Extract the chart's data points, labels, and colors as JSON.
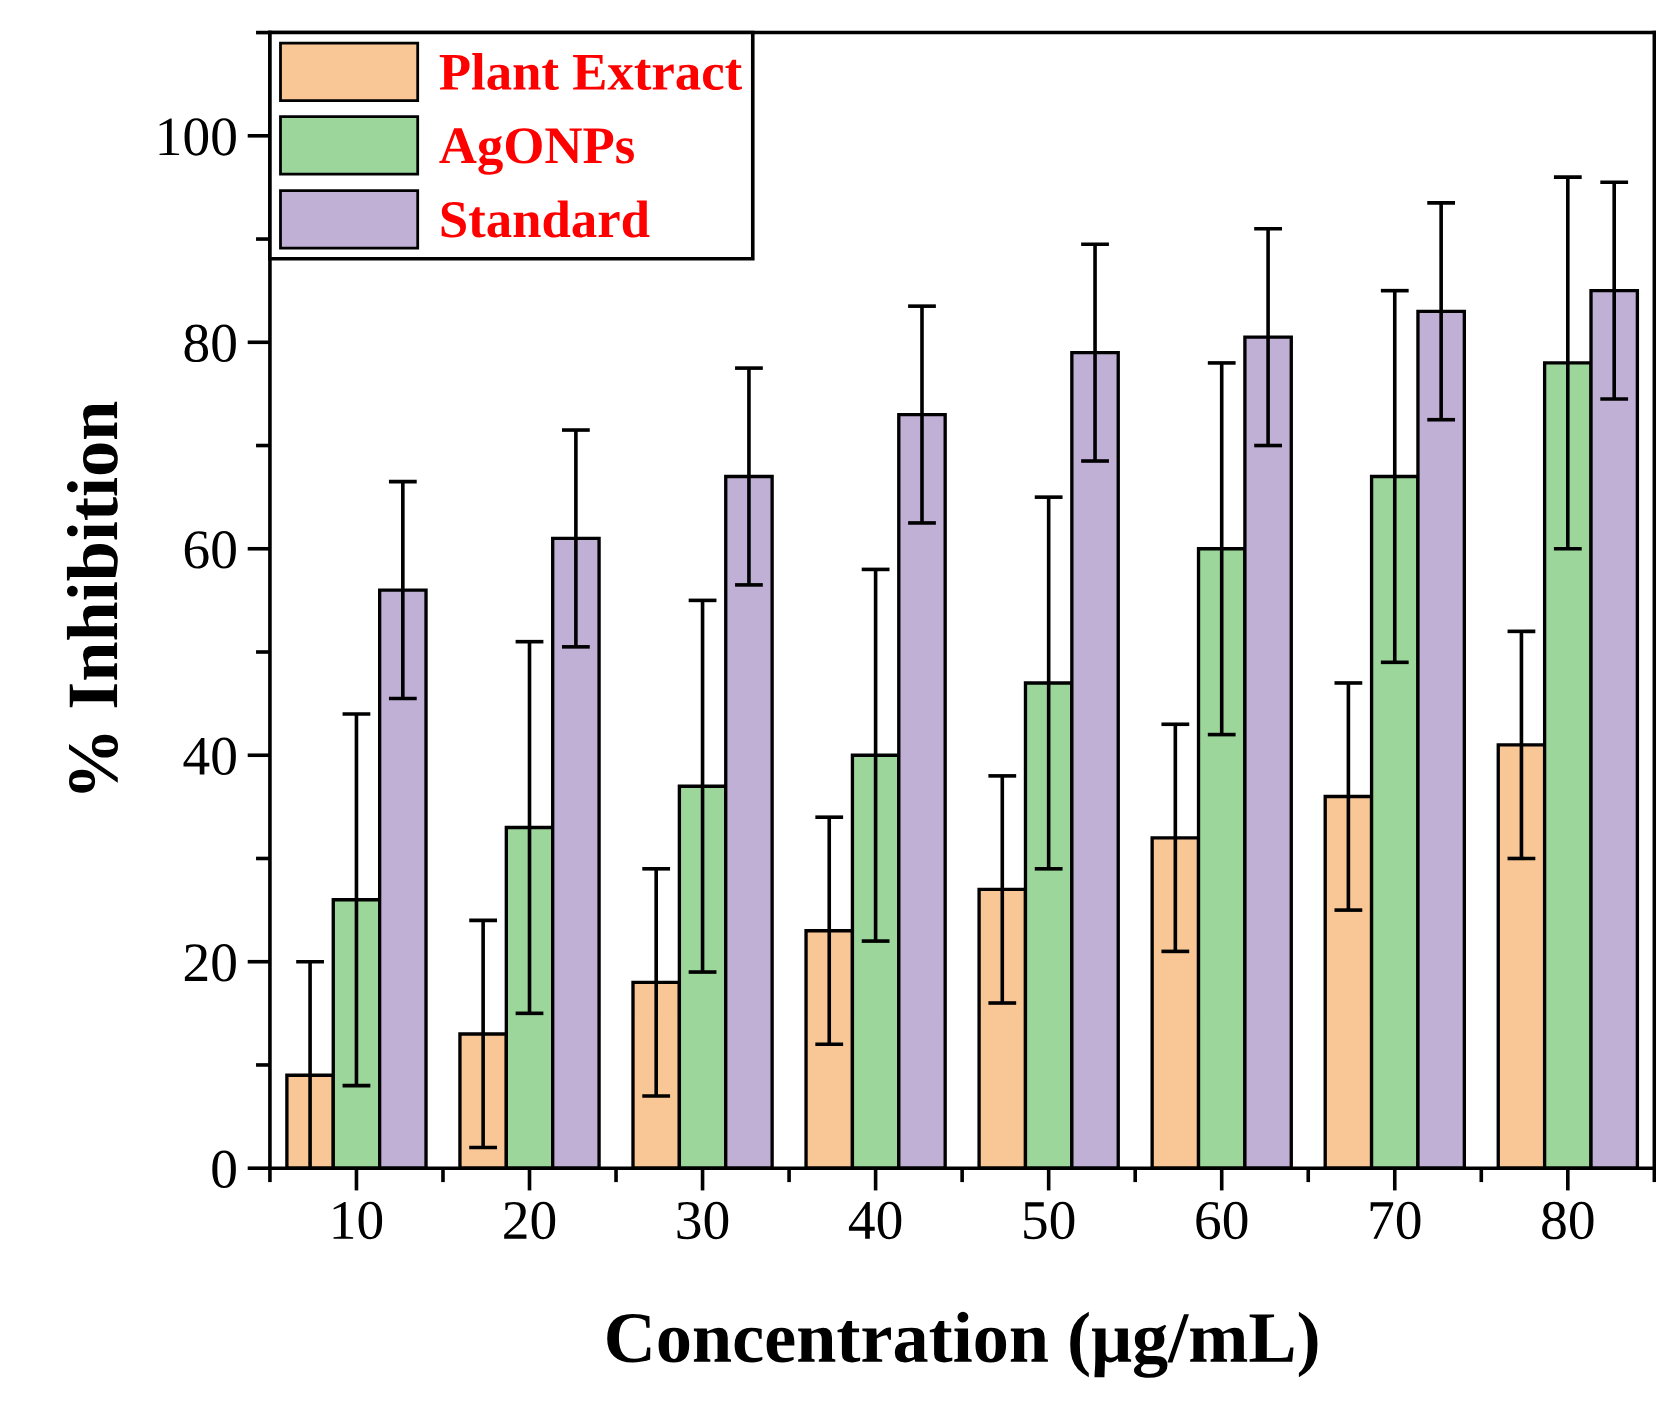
{
  "chart_data": {
    "type": "bar",
    "xlabel": "Concentration (μg/mL)",
    "ylabel": "% Inhibition",
    "categories": [
      "10",
      "20",
      "30",
      "40",
      "50",
      "60",
      "70",
      "80"
    ],
    "series": [
      {
        "name": "Plant Extract",
        "color": "#f9c795",
        "values": [
          9,
          13,
          18,
          23,
          27,
          32,
          36,
          41
        ],
        "errors": [
          11,
          11,
          11,
          11,
          11,
          11,
          11,
          11
        ]
      },
      {
        "name": "AgONPs",
        "color": "#9dd69b",
        "values": [
          26,
          33,
          37,
          40,
          47,
          60,
          67,
          78
        ],
        "errors": [
          18,
          18,
          18,
          18,
          18,
          18,
          18,
          18
        ]
      },
      {
        "name": "Standard",
        "color": "#c1b0d6",
        "values": [
          56,
          61,
          67,
          73,
          79,
          80.5,
          83,
          85
        ],
        "errors": [
          10.5,
          10.5,
          10.5,
          10.5,
          10.5,
          10.5,
          10.5,
          10.5
        ]
      }
    ],
    "ylim": [
      0,
      110
    ],
    "yticks": [
      0,
      20,
      40,
      60,
      80,
      100
    ],
    "grid": false,
    "legend": "top left"
  }
}
